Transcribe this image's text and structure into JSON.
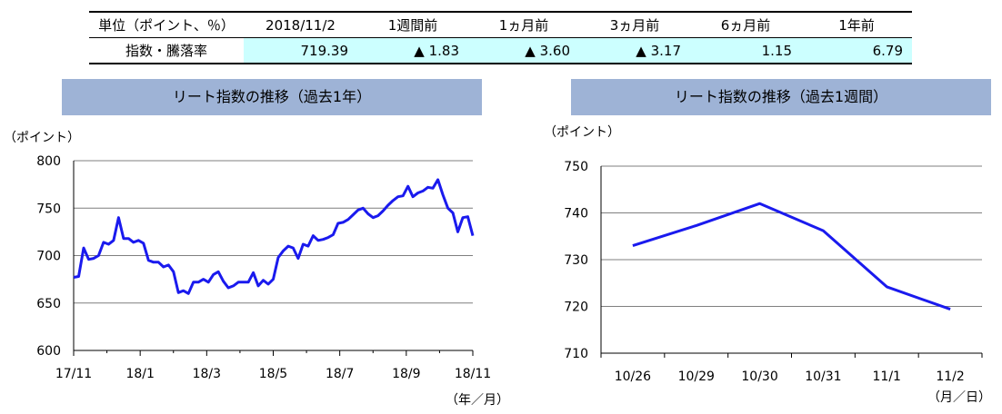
{
  "table": {
    "headers": [
      "単位（ポイント、％）",
      "2018/11/2",
      "1週間前",
      "1ヵ月前",
      "3ヵ月前",
      "6ヵ月前",
      "1年前"
    ],
    "row_label": "指数・騰落率",
    "values": [
      "719.39",
      "▲ 1.83",
      "▲ 3.60",
      "▲ 3.17",
      "1.15",
      "6.79"
    ]
  },
  "colors": {
    "line": "#1a1aee",
    "banner": "#9eb3d6",
    "table_highlight": "#ccffff",
    "grid": "#7f7f7f"
  },
  "chart_data": [
    {
      "type": "line",
      "title": "リート指数の推移（過去1年）",
      "ylabel": "（ポイント）",
      "xlabel": "（年／月）",
      "ylim": [
        600,
        800
      ],
      "yticks": [
        600,
        650,
        700,
        750,
        800
      ],
      "xtick_labels": [
        "17/11",
        "18/1",
        "18/3",
        "18/5",
        "18/7",
        "18/9",
        "18/11"
      ],
      "x_range": [
        0,
        12
      ],
      "grid": true,
      "series": [
        {
          "x": [
            0,
            0.15,
            0.3,
            0.45,
            0.6,
            0.75,
            0.9,
            1.05,
            1.2,
            1.35,
            1.5,
            1.65,
            1.8,
            1.95,
            2.1,
            2.25,
            2.4,
            2.55,
            2.7,
            2.85,
            3.0,
            3.15,
            3.3,
            3.45,
            3.6,
            3.75,
            3.9,
            4.05,
            4.2,
            4.35,
            4.5,
            4.65,
            4.8,
            4.95,
            5.1,
            5.25,
            5.4,
            5.55,
            5.7,
            5.85,
            6.0,
            6.15,
            6.3,
            6.45,
            6.6,
            6.75,
            6.9,
            7.05,
            7.2,
            7.35,
            7.5,
            7.65,
            7.8,
            7.95,
            8.1,
            8.25,
            8.4,
            8.55,
            8.7,
            8.85,
            9.0,
            9.15,
            9.3,
            9.45,
            9.6,
            9.75,
            9.9,
            10.05,
            10.2,
            10.35,
            10.5,
            10.65,
            10.8,
            10.95,
            11.1,
            11.25,
            11.4,
            11.55,
            11.7,
            11.85,
            12.0
          ],
          "values": [
            677,
            678,
            708,
            696,
            697,
            700,
            714,
            712,
            716,
            740,
            718,
            718,
            714,
            716,
            713,
            695,
            693,
            693,
            688,
            690,
            683,
            661,
            663,
            660,
            672,
            672,
            675,
            672,
            680,
            683,
            673,
            666,
            668,
            672,
            672,
            672,
            682,
            668,
            674,
            670,
            675,
            698,
            705,
            710,
            708,
            697,
            712,
            710,
            721,
            716,
            717,
            719,
            722,
            734,
            735,
            738,
            743,
            748,
            750,
            744,
            740,
            742,
            747,
            753,
            758,
            762,
            763,
            773,
            762,
            766,
            768,
            772,
            771,
            780,
            764,
            750,
            745,
            725,
            740,
            741,
            721
          ]
        }
      ]
    },
    {
      "type": "line",
      "title": "リート指数の推移（過去1週間）",
      "ylabel": "（ポイント）",
      "xlabel": "（月／日）",
      "ylim": [
        710,
        750
      ],
      "yticks": [
        710,
        720,
        730,
        740,
        750
      ],
      "categories": [
        "10/26",
        "10/29",
        "10/30",
        "10/31",
        "11/1",
        "11/2"
      ],
      "grid": true,
      "series": [
        {
          "values": [
            733,
            737.3,
            742,
            736.2,
            724.2,
            719.39
          ]
        }
      ]
    }
  ]
}
